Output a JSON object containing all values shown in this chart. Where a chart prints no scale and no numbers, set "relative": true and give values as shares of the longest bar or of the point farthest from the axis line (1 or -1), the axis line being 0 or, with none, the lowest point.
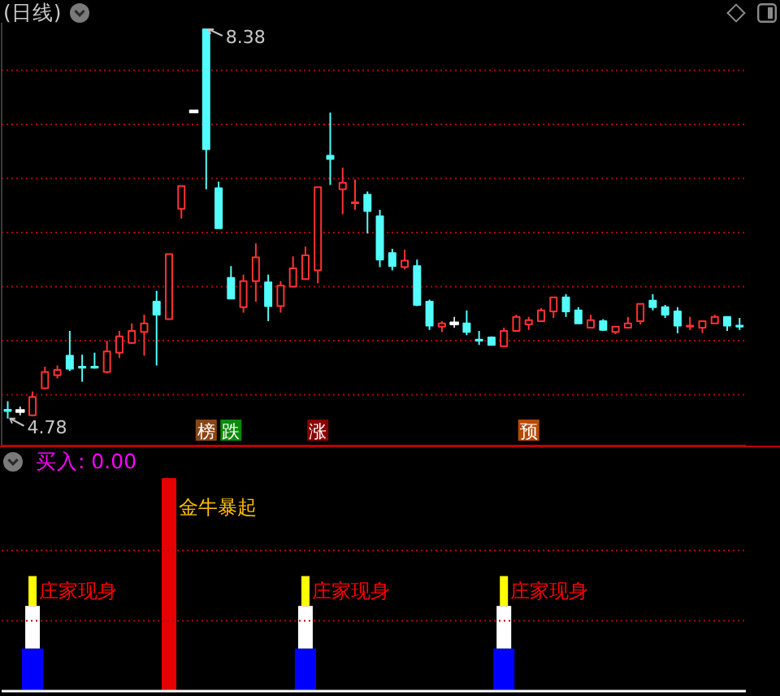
{
  "chart_data": [
    {
      "type": "candlestick",
      "title": "(日线)",
      "categories": [
        null,
        null,
        null,
        null,
        null,
        null,
        null,
        null,
        null,
        null,
        null,
        null,
        null,
        null,
        null,
        null,
        null,
        null,
        null,
        null,
        null,
        null,
        null,
        null,
        null,
        null,
        null,
        null,
        null,
        null,
        null,
        null,
        null,
        null,
        null,
        null,
        null,
        null,
        null,
        null,
        null,
        null,
        null,
        null,
        null,
        null,
        null,
        null,
        null,
        null,
        null,
        null,
        null,
        null,
        null,
        null,
        null,
        null,
        null,
        null
      ],
      "ohlc": [
        [
          4.86,
          4.94,
          4.78,
          4.85
        ],
        [
          4.85,
          4.89,
          4.81,
          4.85
        ],
        [
          4.81,
          5.03,
          4.8,
          4.98
        ],
        [
          5.06,
          5.26,
          5.05,
          5.21
        ],
        [
          5.18,
          5.27,
          5.15,
          5.23
        ],
        [
          5.36,
          5.59,
          5.22,
          5.24
        ],
        [
          5.26,
          5.37,
          5.12,
          5.25
        ],
        [
          5.26,
          5.39,
          5.24,
          5.25
        ],
        [
          5.21,
          5.5,
          5.2,
          5.4
        ],
        [
          5.39,
          5.59,
          5.34,
          5.54
        ],
        [
          5.48,
          5.66,
          5.47,
          5.59
        ],
        [
          5.58,
          5.74,
          5.36,
          5.66
        ],
        [
          5.86,
          5.96,
          5.27,
          5.74
        ],
        [
          5.7,
          6.3,
          5.7,
          6.3
        ],
        [
          6.72,
          6.93,
          6.63,
          6.93
        ],
        [
          7.62,
          7.62,
          7.62,
          7.62
        ],
        [
          8.38,
          8.38,
          6.9,
          7.27
        ],
        [
          6.91,
          6.97,
          6.54,
          6.54
        ],
        [
          6.08,
          6.19,
          5.89,
          5.89
        ],
        [
          5.81,
          6.11,
          5.76,
          6.05
        ],
        [
          6.05,
          6.4,
          5.86,
          6.27
        ],
        [
          6.04,
          6.11,
          5.68,
          5.82
        ],
        [
          5.82,
          6.05,
          5.76,
          6.01
        ],
        [
          6.0,
          6.28,
          5.99,
          6.17
        ],
        [
          6.07,
          6.37,
          6.06,
          6.29
        ],
        [
          6.15,
          6.92,
          6.03,
          6.92
        ],
        [
          7.21,
          7.61,
          6.94,
          7.18
        ],
        [
          6.9,
          7.1,
          6.67,
          6.96
        ],
        [
          6.77,
          6.99,
          6.71,
          6.78
        ],
        [
          6.85,
          6.88,
          6.49,
          6.7
        ],
        [
          6.65,
          6.71,
          6.18,
          6.25
        ],
        [
          6.31,
          6.35,
          6.15,
          6.19
        ],
        [
          6.18,
          6.34,
          6.16,
          6.24
        ],
        [
          6.19,
          6.25,
          5.82,
          5.83
        ],
        [
          5.86,
          5.88,
          5.6,
          5.64
        ],
        [
          5.63,
          5.68,
          5.58,
          5.66
        ],
        [
          5.66,
          5.72,
          5.62,
          5.66
        ],
        [
          5.66,
          5.78,
          5.55,
          5.58
        ],
        [
          5.51,
          5.59,
          5.46,
          5.5
        ],
        [
          5.53,
          5.54,
          5.46,
          5.46
        ],
        [
          5.45,
          5.62,
          5.45,
          5.59
        ],
        [
          5.59,
          5.74,
          5.59,
          5.72
        ],
        [
          5.65,
          5.72,
          5.6,
          5.69
        ],
        [
          5.68,
          5.8,
          5.68,
          5.78
        ],
        [
          5.77,
          5.9,
          5.71,
          5.9
        ],
        [
          5.9,
          5.93,
          5.72,
          5.77
        ],
        [
          5.78,
          5.81,
          5.66,
          5.66
        ],
        [
          5.62,
          5.74,
          5.62,
          5.69
        ],
        [
          5.68,
          5.7,
          5.59,
          5.6
        ],
        [
          5.58,
          5.63,
          5.56,
          5.63
        ],
        [
          5.62,
          5.72,
          5.62,
          5.66
        ],
        [
          5.68,
          5.84,
          5.65,
          5.84
        ],
        [
          5.87,
          5.93,
          5.78,
          5.81
        ],
        [
          5.81,
          5.83,
          5.71,
          5.74
        ],
        [
          5.77,
          5.81,
          5.57,
          5.64
        ],
        [
          5.63,
          5.72,
          5.6,
          5.64
        ],
        [
          5.62,
          5.68,
          5.57,
          5.68
        ],
        [
          5.66,
          5.74,
          5.66,
          5.72
        ],
        [
          5.72,
          5.72,
          5.59,
          5.64
        ],
        [
          5.64,
          5.71,
          5.6,
          5.63
        ]
      ],
      "colors": [
        "#54fcfc",
        "#ffffff",
        "#ff3232",
        "#ff3232",
        "#ff3232",
        "#54fcfc",
        "#54fcfc",
        "#54fcfc",
        "#ff3232",
        "#ff3232",
        "#ff3232",
        "#ff3232",
        "#54fcfc",
        "#ff3232",
        "#ff3232",
        "#ffffff",
        "#54fcfc",
        "#54fcfc",
        "#54fcfc",
        "#ff3232",
        "#ff3232",
        "#54fcfc",
        "#ff3232",
        "#ff3232",
        "#ff3232",
        "#ff3232",
        "#54fcfc",
        "#ff3232",
        "#ff3232",
        "#54fcfc",
        "#54fcfc",
        "#54fcfc",
        "#ff3232",
        "#54fcfc",
        "#54fcfc",
        "#ff3232",
        "#ffffff",
        "#54fcfc",
        "#54fcfc",
        "#54fcfc",
        "#ff3232",
        "#ff3232",
        "#ff3232",
        "#ff3232",
        "#ff3232",
        "#54fcfc",
        "#54fcfc",
        "#ff3232",
        "#54fcfc",
        "#ff3232",
        "#ff3232",
        "#ff3232",
        "#54fcfc",
        "#54fcfc",
        "#54fcfc",
        "#ff3232",
        "#ff3232",
        "#ff3232",
        "#54fcfc",
        "#54fcfc"
      ],
      "value_labels": [
        null,
        null,
        null,
        null,
        null,
        null,
        null,
        null,
        null,
        null,
        null,
        null,
        null,
        null,
        null,
        null,
        "榜",
        null,
        "跌",
        null,
        null,
        null,
        null,
        null,
        null,
        "涨",
        null,
        null,
        null,
        null,
        null,
        null,
        null,
        null,
        null,
        null,
        null,
        null,
        null,
        null,
        null,
        null,
        "预",
        null,
        null,
        null,
        null,
        null,
        null,
        null,
        null,
        null,
        null,
        null,
        null,
        null,
        null,
        null,
        null,
        null
      ],
      "ylim": [
        4.53,
        8.44
      ],
      "yticks": [
        {
          "value": 5,
          "label": null
        },
        {
          "value": 5.5,
          "label": null
        },
        {
          "value": 6,
          "label": null
        },
        {
          "value": 6.5,
          "label": null
        },
        {
          "value": 7,
          "label": null
        },
        {
          "value": 7.5,
          "label": null
        },
        {
          "value": 8,
          "label": null
        }
      ],
      "grid": "y",
      "annotations": [
        "8.38",
        "4.78"
      ]
    },
    {
      "type": "bar",
      "title": "买入: 0.00",
      "stacked": true,
      "relative": true,
      "categories": [
        null,
        null,
        null,
        null,
        null,
        null,
        null,
        null,
        null,
        null,
        null,
        null,
        null,
        null,
        null,
        null,
        null,
        null,
        null,
        null,
        null,
        null,
        null,
        null,
        null,
        null,
        null,
        null,
        null,
        null,
        null,
        null,
        null,
        null,
        null,
        null,
        null,
        null,
        null,
        null,
        null,
        null,
        null,
        null,
        null,
        null,
        null,
        null,
        null,
        null,
        null,
        null,
        null,
        null,
        null,
        null,
        null,
        null,
        null,
        null
      ],
      "series": [
        {
          "color": "#0000ff",
          "values": [
            null,
            null,
            0.2,
            null,
            null,
            null,
            null,
            null,
            null,
            null,
            null,
            null,
            null,
            null,
            null,
            null,
            null,
            null,
            null,
            null,
            null,
            null,
            null,
            null,
            0.2,
            null,
            null,
            null,
            null,
            null,
            null,
            null,
            null,
            null,
            null,
            null,
            null,
            null,
            null,
            null,
            0.2,
            null,
            null,
            null,
            null,
            null,
            null,
            null,
            null,
            null,
            null,
            null,
            null,
            null,
            null,
            null,
            null,
            null,
            null,
            null
          ]
        },
        {
          "color": "#ffffff",
          "values": [
            null,
            null,
            0.2,
            null,
            null,
            null,
            null,
            null,
            null,
            null,
            null,
            null,
            null,
            null,
            null,
            null,
            null,
            null,
            null,
            null,
            null,
            null,
            null,
            null,
            0.2,
            null,
            null,
            null,
            null,
            null,
            null,
            null,
            null,
            null,
            null,
            null,
            null,
            null,
            null,
            null,
            0.2,
            null,
            null,
            null,
            null,
            null,
            null,
            null,
            null,
            null,
            null,
            null,
            null,
            null,
            null,
            null,
            null,
            null,
            null,
            null
          ]
        },
        {
          "name": "庄家现身",
          "color": "#ffff00",
          "values": [
            null,
            null,
            0.14,
            null,
            null,
            null,
            null,
            null,
            null,
            null,
            null,
            null,
            null,
            null,
            null,
            null,
            null,
            null,
            null,
            null,
            null,
            null,
            null,
            null,
            0.14,
            null,
            null,
            null,
            null,
            null,
            null,
            null,
            null,
            null,
            null,
            null,
            null,
            null,
            null,
            null,
            0.14,
            null,
            null,
            null,
            null,
            null,
            null,
            null,
            null,
            null,
            null,
            null,
            null,
            null,
            null,
            null,
            null,
            null,
            null,
            null
          ]
        },
        {
          "name": "金牛暴起",
          "color": "#e60000",
          "values": [
            null,
            null,
            null,
            null,
            null,
            null,
            null,
            null,
            null,
            null,
            null,
            null,
            null,
            1,
            null,
            null,
            null,
            null,
            null,
            null,
            null,
            null,
            null,
            null,
            null,
            null,
            null,
            null,
            null,
            null,
            null,
            null,
            null,
            null,
            null,
            null,
            null,
            null,
            null,
            null,
            null,
            null,
            null,
            null,
            null,
            null,
            null,
            null,
            null,
            null,
            null,
            null,
            null,
            null,
            null,
            null,
            null,
            null,
            null,
            null
          ]
        }
      ],
      "ref_lines": [
        {
          "axis": "y",
          "value": 0.33,
          "color": "#b40000",
          "line_style": "dotted"
        },
        {
          "axis": "y",
          "value": 0.66,
          "color": "#b40000",
          "line_style": "dotted"
        }
      ]
    }
  ]
}
